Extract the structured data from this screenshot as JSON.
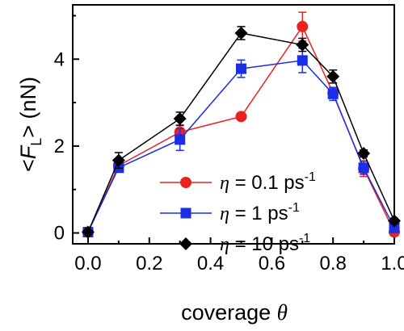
{
  "chart_data": {
    "type": "line",
    "title": "",
    "xlabel": {
      "prefix": "coverage ",
      "symbol": "θ"
    },
    "ylabel": {
      "open": "<",
      "symbol": "F",
      "subscript": "L",
      "close": ">",
      "unit": " (nN)"
    },
    "xlim": [
      -0.05,
      1.0
    ],
    "ylim": [
      -0.25,
      5.25
    ],
    "xticks": [
      0.0,
      0.2,
      0.4,
      0.6,
      0.8,
      1.0
    ],
    "xtick_labels": [
      "0.0",
      "0.2",
      "0.4",
      "0.6",
      "0.8",
      "1.0"
    ],
    "yticks": [
      0,
      2,
      4
    ],
    "ytick_labels": [
      "0",
      "2",
      "4"
    ],
    "grid": false,
    "legend_position": "lower-center",
    "series": [
      {
        "name": "η = 0.1 ps-1",
        "legend": {
          "symbol": "η",
          "text": " = 0.1 ps",
          "sup": "-1"
        },
        "color": "#e8231f",
        "marker": "circle",
        "x": [
          0.0,
          0.1,
          0.3,
          0.5,
          0.7,
          0.8,
          0.9,
          1.0
        ],
        "y": [
          0.02,
          1.55,
          2.32,
          2.68,
          4.75,
          3.22,
          1.48,
          0.02
        ],
        "yerr": [
          0.05,
          0.08,
          0.15,
          0.05,
          0.33,
          0.12,
          0.18,
          0.05
        ]
      },
      {
        "name": "η = 1 ps-1",
        "legend": {
          "symbol": "η",
          "text": " = 1 ps",
          "sup": "-1"
        },
        "color": "#1a2ee6",
        "marker": "square",
        "x": [
          0.0,
          0.1,
          0.3,
          0.5,
          0.7,
          0.8,
          0.9,
          1.0
        ],
        "y": [
          0.02,
          1.5,
          2.15,
          3.78,
          3.97,
          3.2,
          1.5,
          0.12
        ],
        "yerr": [
          0.05,
          0.08,
          0.25,
          0.2,
          0.28,
          0.15,
          0.15,
          0.06
        ]
      },
      {
        "name": "η = 10 ps-1",
        "legend": {
          "symbol": "η",
          "text": " = 10 ps",
          "sup": "-1"
        },
        "color": "#000000",
        "marker": "diamond",
        "x": [
          0.0,
          0.1,
          0.3,
          0.5,
          0.7,
          0.8,
          0.9,
          1.0
        ],
        "y": [
          0.02,
          1.67,
          2.63,
          4.6,
          4.33,
          3.6,
          1.83,
          0.28
        ],
        "yerr": [
          0.05,
          0.18,
          0.15,
          0.15,
          0.15,
          0.15,
          0.08,
          0.06
        ]
      }
    ]
  }
}
